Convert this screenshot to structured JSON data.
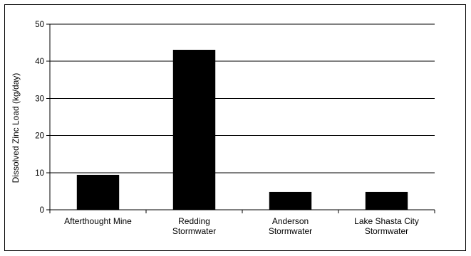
{
  "chart_data": {
    "type": "bar",
    "title": "",
    "xlabel": "",
    "ylabel": "Dissolved Zinc Load (kg/day)",
    "categories": [
      [
        "Afterthought Mine"
      ],
      [
        "Redding",
        "Stormwater"
      ],
      [
        "Anderson",
        "Stormwater"
      ],
      [
        "Lake Shasta City",
        "Stormwater"
      ]
    ],
    "values": [
      9.4,
      43.1,
      4.8,
      4.8
    ],
    "ylim": [
      0,
      50
    ],
    "yticks": [
      0,
      10,
      20,
      30,
      40,
      50
    ],
    "grid": true,
    "legend": "none",
    "bar_color": "#000000",
    "gridline_color": "#000000"
  }
}
